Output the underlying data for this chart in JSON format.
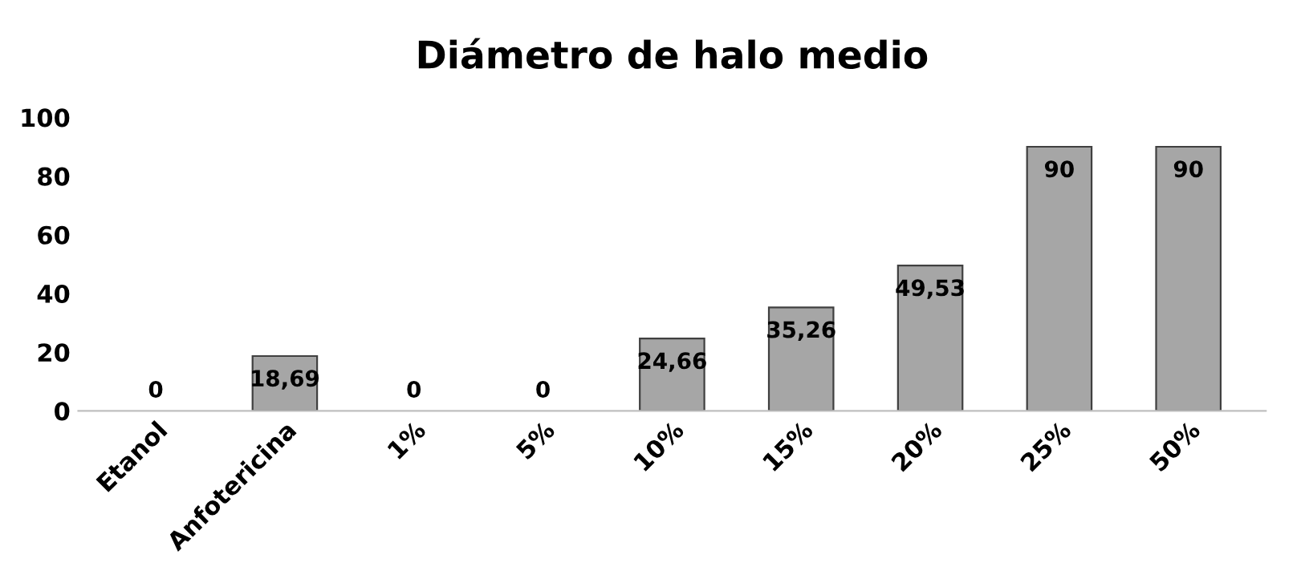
{
  "chart_data": {
    "type": "bar",
    "title": "Diámetro de halo medio",
    "categories": [
      "Etanol",
      "Anfotericina",
      "1%",
      "5%",
      "10%",
      "15%",
      "20%",
      "25%",
      "50%"
    ],
    "values": [
      0,
      18.69,
      0,
      0,
      24.66,
      35.26,
      49.53,
      90,
      90
    ],
    "value_labels": [
      "0",
      "18,69",
      "0",
      "0",
      "24,66",
      "35,26",
      "49,53",
      "90",
      "90"
    ],
    "color": "#a6a6a6",
    "ylim": [
      0,
      100
    ],
    "yticks": [
      0,
      20,
      40,
      60,
      80,
      100
    ],
    "grid": false,
    "legend": false
  }
}
